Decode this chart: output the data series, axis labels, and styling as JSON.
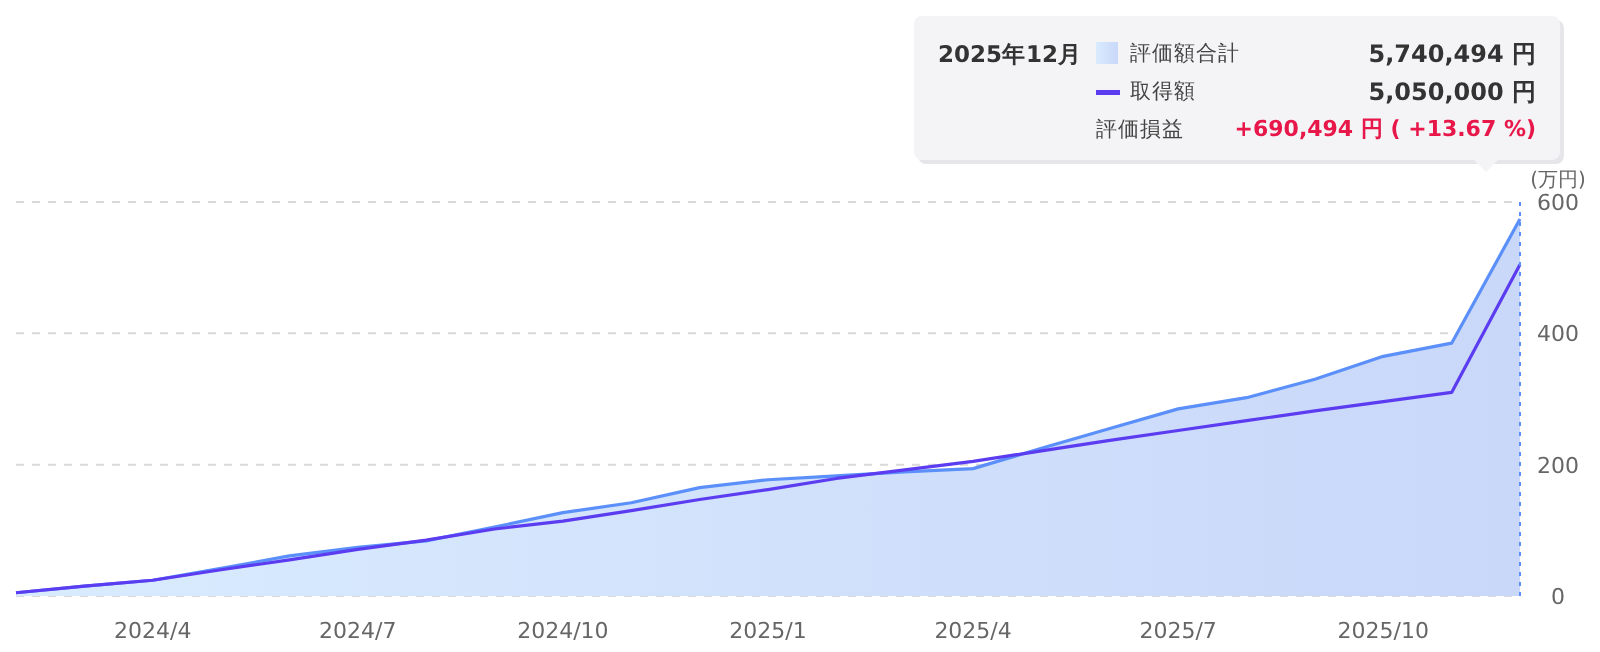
{
  "chart_data": {
    "type": "line",
    "ylabel": "(万円)",
    "x": [
      "2024-02",
      "2024-03",
      "2024-04",
      "2024-05",
      "2024-06",
      "2024-07",
      "2024-08",
      "2024-09",
      "2024-10",
      "2024-11",
      "2024-12",
      "2025-01",
      "2025-02",
      "2025-03",
      "2025-04",
      "2025-05",
      "2025-06",
      "2025-07",
      "2025-08",
      "2025-09",
      "2025-10",
      "2025-11",
      "2025-12"
    ],
    "series": [
      {
        "name": "評価額合計",
        "type": "area",
        "color": "#5b8ff9",
        "values": [
          5,
          15,
          24,
          42,
          61,
          74,
          84,
          105,
          127,
          142,
          165,
          177,
          183,
          189,
          194,
          225,
          255,
          285,
          302,
          330,
          365,
          385,
          574
        ]
      },
      {
        "name": "取得額",
        "type": "line",
        "color": "#5b3cf0",
        "values": [
          5,
          15,
          24,
          40,
          55,
          71,
          85,
          102,
          114,
          130,
          147,
          162,
          179,
          192,
          205,
          221,
          237,
          252,
          267,
          282,
          296,
          310,
          505
        ]
      }
    ],
    "xlim": [
      "2024-02",
      "2025-12"
    ],
    "xticks": [
      {
        "value": "2024-04",
        "label": "2024/4"
      },
      {
        "value": "2024-07",
        "label": "2024/7"
      },
      {
        "value": "2024-10",
        "label": "2024/10"
      },
      {
        "value": "2025-01",
        "label": "2025/1"
      },
      {
        "value": "2025-04",
        "label": "2025/4"
      },
      {
        "value": "2025-07",
        "label": "2025/7"
      },
      {
        "value": "2025-10",
        "label": "2025/10"
      }
    ],
    "ylim": [
      0,
      600
    ],
    "yticks": [
      0,
      200,
      400,
      600
    ],
    "grid": "y",
    "legend": "top right",
    "ref_lines": [
      {
        "axis": "x",
        "value": "2025-12",
        "color": "#5b8ff9",
        "line_style": "dotted"
      }
    ],
    "annotations": [
      "2025年12月",
      "5,740,494 円",
      "5,050,000 円",
      "評価損益",
      "+690,494 円 ( +13.67 %)"
    ]
  }
}
